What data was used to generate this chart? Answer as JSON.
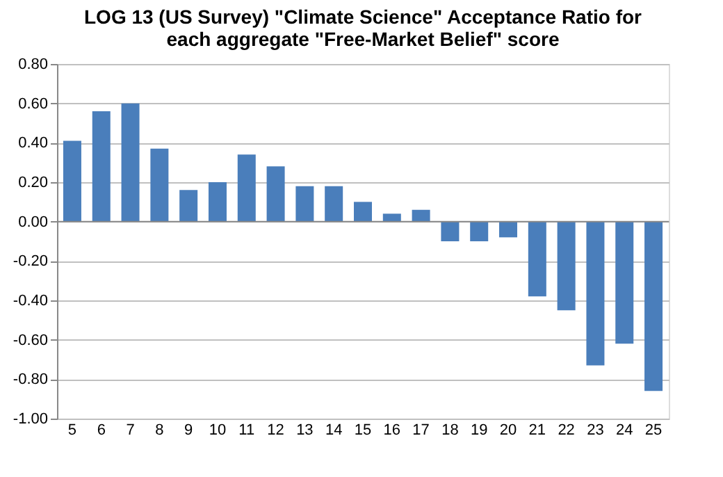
{
  "chart_data": {
    "type": "bar",
    "title": [
      "LOG 13 (US Survey) \"Climate Science\" Acceptance Ratio for",
      "each aggregate \"Free-Market Belief\" score"
    ],
    "categories": [
      "5",
      "6",
      "7",
      "8",
      "9",
      "10",
      "11",
      "12",
      "13",
      "14",
      "15",
      "16",
      "17",
      "18",
      "19",
      "20",
      "21",
      "22",
      "23",
      "24",
      "25"
    ],
    "values": [
      0.41,
      0.56,
      0.6,
      0.37,
      0.16,
      0.2,
      0.34,
      0.28,
      0.18,
      0.18,
      0.1,
      0.04,
      0.06,
      -0.1,
      -0.1,
      -0.08,
      -0.38,
      -0.45,
      -0.73,
      -0.62,
      -0.86
    ],
    "color": "#4a7ebb",
    "ylim": [
      -1.0,
      0.8
    ],
    "yticks": [
      {
        "value": -1.0,
        "label": "-1.00"
      },
      {
        "value": -0.8,
        "label": "-0.80"
      },
      {
        "value": -0.6,
        "label": "-0.60"
      },
      {
        "value": -0.4,
        "label": "-0.40"
      },
      {
        "value": -0.2,
        "label": "-0.20"
      },
      {
        "value": 0.0,
        "label": "0.00"
      },
      {
        "value": 0.2,
        "label": "0.20"
      },
      {
        "value": 0.4,
        "label": "0.40"
      },
      {
        "value": 0.6,
        "label": "0.60"
      },
      {
        "value": 0.8,
        "label": "0.80"
      }
    ],
    "grid": "y"
  }
}
